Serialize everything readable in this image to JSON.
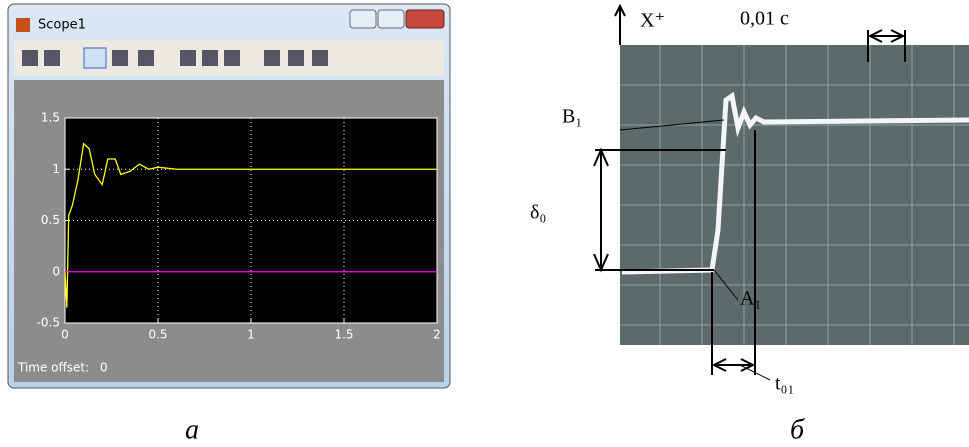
{
  "window": {
    "title": "Scope1",
    "time_offset_label": "Time offset:",
    "time_offset_value": "0"
  },
  "chart_data": {
    "type": "line",
    "xlim": [
      0,
      2
    ],
    "ylim": [
      -0.5,
      1.5
    ],
    "xticks": [
      0,
      0.5,
      1,
      1.5,
      2
    ],
    "yticks": [
      -0.5,
      0,
      0.5,
      1,
      1.5
    ],
    "grid": true,
    "x": [
      0,
      0.01,
      0.02,
      0.04,
      0.07,
      0.1,
      0.13,
      0.16,
      0.2,
      0.23,
      0.27,
      0.3,
      0.35,
      0.4,
      0.45,
      0.5,
      0.6,
      0.8,
      1,
      2
    ],
    "series": [
      {
        "color": "#ffff00",
        "values": [
          0,
          -0.35,
          0.55,
          0.65,
          0.9,
          1.25,
          1.2,
          0.95,
          0.85,
          1.1,
          1.1,
          0.95,
          0.98,
          1.05,
          1.0,
          1.02,
          1.0,
          1.0,
          1.0,
          1.0
        ]
      },
      {
        "color": "#ff00ff",
        "values": [
          0,
          0,
          0,
          0,
          0,
          0,
          0,
          0,
          0,
          0,
          0,
          0,
          0,
          0,
          0,
          0,
          0,
          0,
          0,
          0
        ]
      }
    ]
  },
  "photo": {
    "x_axis": "X⁺",
    "time_scale": "0,01 с",
    "b1": "B₁",
    "delta0": "δ₀",
    "a1": "A₁",
    "t01": "t₀₁"
  },
  "captions": [
    "а",
    "б"
  ]
}
